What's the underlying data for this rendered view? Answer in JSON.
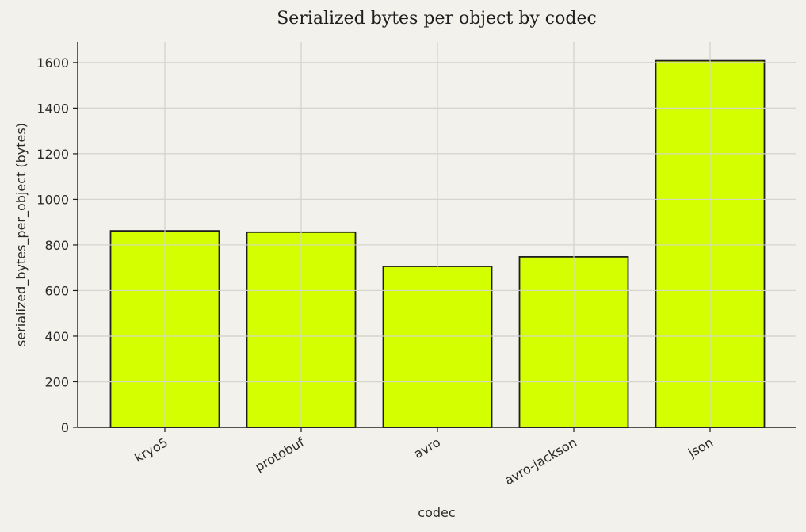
{
  "chart_data": {
    "type": "bar",
    "title": "Serialized bytes per object by codec",
    "xlabel": "codec",
    "ylabel": "serialized_bytes_per_object (bytes)",
    "categories": [
      "kryo5",
      "protobuf",
      "avro",
      "avro-jackson",
      "json"
    ],
    "values": [
      862,
      856,
      706,
      748,
      1608
    ],
    "ylim": [
      0,
      1690
    ],
    "yticks": [
      0,
      200,
      400,
      600,
      800,
      1000,
      1200,
      1400,
      1600
    ],
    "grid": true,
    "bar_color": "#d4ff00",
    "bar_edge_color": "#1e1e1e",
    "background_color": "#f2f1eb"
  }
}
